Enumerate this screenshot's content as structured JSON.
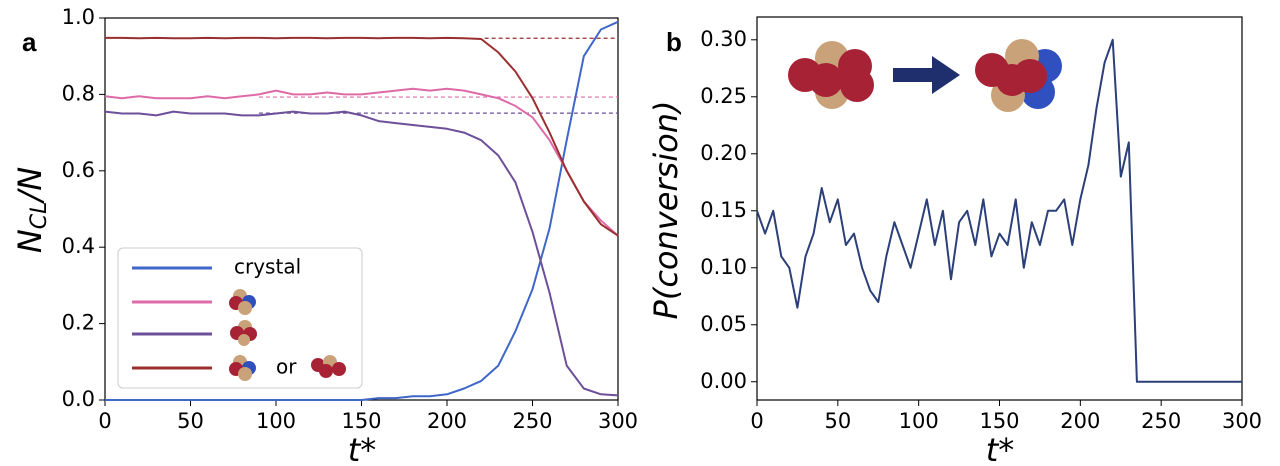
{
  "chart_data": [
    {
      "type": "line",
      "label": "a",
      "ylabel": {
        "text": "N",
        "sub": "CL",
        "suffix": "/N"
      },
      "xlabel": "t*",
      "x": [
        0,
        10,
        20,
        30,
        40,
        50,
        60,
        70,
        80,
        90,
        100,
        110,
        120,
        130,
        140,
        150,
        160,
        170,
        180,
        190,
        200,
        210,
        220,
        230,
        240,
        250,
        260,
        270,
        280,
        290,
        300
      ],
      "series": [
        {
          "name": "crystal",
          "color": "#3f67c9",
          "values": [
            0,
            0,
            0,
            0,
            0,
            0,
            0,
            0,
            0,
            0,
            0,
            0,
            0,
            0,
            0,
            0,
            0.005,
            0.005,
            0.01,
            0.01,
            0.015,
            0.03,
            0.05,
            0.09,
            0.18,
            0.29,
            0.45,
            0.68,
            0.9,
            0.97,
            0.99
          ]
        },
        {
          "color": "#de6ba8",
          "values": [
            0.795,
            0.79,
            0.795,
            0.79,
            0.79,
            0.79,
            0.795,
            0.79,
            0.795,
            0.8,
            0.81,
            0.8,
            0.8,
            0.805,
            0.8,
            0.8,
            0.805,
            0.81,
            0.815,
            0.81,
            0.815,
            0.81,
            0.8,
            0.79,
            0.77,
            0.74,
            0.68,
            0.6,
            0.52,
            0.47,
            0.43
          ]
        },
        {
          "color": "#6d4f9a",
          "values": [
            0.755,
            0.75,
            0.75,
            0.745,
            0.755,
            0.75,
            0.75,
            0.75,
            0.745,
            0.745,
            0.75,
            0.755,
            0.75,
            0.75,
            0.755,
            0.745,
            0.73,
            0.725,
            0.72,
            0.715,
            0.71,
            0.7,
            0.68,
            0.64,
            0.57,
            0.44,
            0.28,
            0.09,
            0.03,
            0.015,
            0.012
          ]
        },
        {
          "name": "or",
          "color": "#9b2f2f",
          "values": [
            0.948,
            0.948,
            0.947,
            0.948,
            0.947,
            0.947,
            0.948,
            0.947,
            0.948,
            0.948,
            0.947,
            0.948,
            0.948,
            0.947,
            0.948,
            0.948,
            0.947,
            0.948,
            0.948,
            0.947,
            0.948,
            0.947,
            0.945,
            0.91,
            0.86,
            0.79,
            0.7,
            0.6,
            0.52,
            0.46,
            0.43
          ]
        }
      ],
      "hlines": [
        {
          "value": 0.947,
          "from": 222,
          "color": "#9b2f2f"
        },
        {
          "value": 0.793,
          "from": 90,
          "color": "#de6ba8"
        },
        {
          "value": 0.751,
          "from": 90,
          "color": "#6d4f9a"
        }
      ],
      "xlim": [
        0,
        300
      ],
      "xticks": [
        0,
        50,
        100,
        150,
        200,
        250,
        300
      ],
      "ylim": [
        0,
        1
      ],
      "yticks": [
        {
          "value": 0,
          "label": "0.0"
        },
        {
          "value": 0.2,
          "label": "0.2"
        },
        {
          "value": 0.4,
          "label": "0.4"
        },
        {
          "value": 0.6,
          "label": "0.6"
        },
        {
          "value": 0.8,
          "label": "0.8"
        },
        {
          "value": 1,
          "label": "1.0"
        }
      ]
    },
    {
      "type": "line",
      "label": "b",
      "ylabel": "P(conversion)",
      "xlabel": "t*",
      "x": [
        0,
        5,
        10,
        15,
        20,
        25,
        30,
        35,
        40,
        45,
        50,
        55,
        60,
        65,
        70,
        75,
        80,
        85,
        90,
        95,
        100,
        105,
        110,
        115,
        120,
        125,
        130,
        135,
        140,
        145,
        150,
        155,
        160,
        165,
        170,
        175,
        180,
        185,
        190,
        195,
        200,
        205,
        210,
        215,
        220,
        225,
        230,
        235,
        240,
        245,
        250,
        255,
        260,
        265,
        270,
        275,
        280,
        285,
        290,
        295,
        300
      ],
      "series": [
        {
          "color": "#2b3f78",
          "values": [
            0.15,
            0.13,
            0.15,
            0.11,
            0.1,
            0.065,
            0.11,
            0.13,
            0.17,
            0.14,
            0.16,
            0.12,
            0.13,
            0.1,
            0.08,
            0.07,
            0.11,
            0.14,
            0.12,
            0.1,
            0.13,
            0.16,
            0.12,
            0.15,
            0.09,
            0.14,
            0.15,
            0.12,
            0.16,
            0.11,
            0.13,
            0.12,
            0.16,
            0.1,
            0.14,
            0.12,
            0.15,
            0.15,
            0.16,
            0.12,
            0.16,
            0.19,
            0.24,
            0.28,
            0.3,
            0.18,
            0.21,
            0,
            0,
            0,
            0,
            0,
            0,
            0,
            0,
            0,
            0,
            0,
            0,
            0,
            0
          ]
        }
      ],
      "xlim": [
        0,
        300
      ],
      "xticks": [
        0,
        50,
        100,
        150,
        200,
        250,
        300
      ],
      "ylim": [
        -0.016,
        0.32
      ],
      "yticks": [
        {
          "value": 0,
          "label": "0.00"
        },
        {
          "value": 0.05,
          "label": "0.05"
        },
        {
          "value": 0.1,
          "label": "0.10"
        },
        {
          "value": 0.15,
          "label": "0.15"
        },
        {
          "value": 0.2,
          "label": "0.20"
        },
        {
          "value": 0.25,
          "label": "0.25"
        },
        {
          "value": 0.3,
          "label": "0.30"
        }
      ]
    }
  ]
}
